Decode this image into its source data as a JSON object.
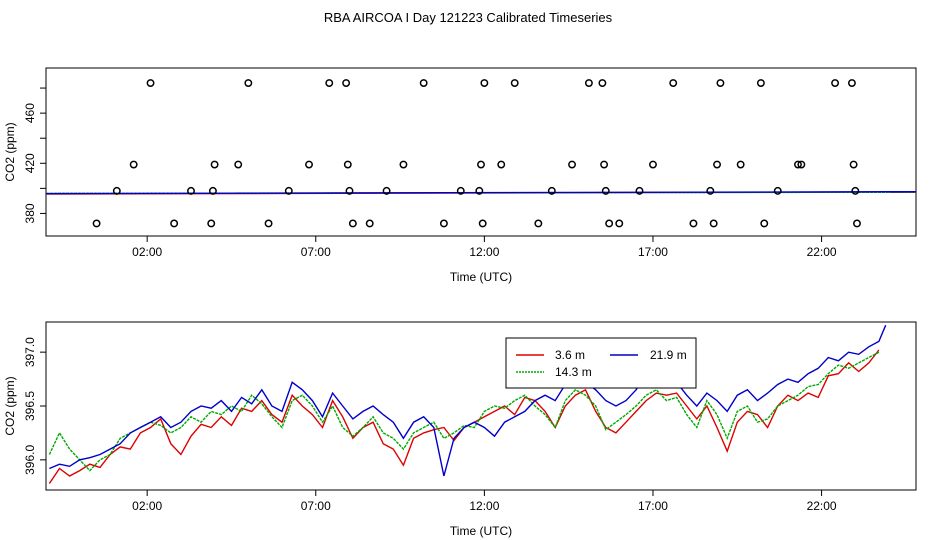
{
  "title": "RBA AIRCOA I  Day 121223  Calibrated Timeseries",
  "colors": {
    "s1": "#dd0000",
    "s2": "#00aa00",
    "s3": "#0000cc"
  },
  "chart_data": [
    {
      "type": "scatter",
      "xlabel": "Time (UTC)",
      "ylabel": "CO2 (ppm)",
      "x_ticks": [
        "02:00",
        "07:00",
        "12:00",
        "17:00",
        "22:00"
      ],
      "y_ticks": [
        "380",
        "420",
        "460"
      ],
      "xlim": [
        23.0,
        48.8
      ],
      "ylim": [
        362,
        496
      ],
      "grid": false,
      "legend": "none",
      "circle_points": [
        [
          24.5,
          372
        ],
        [
          25.1,
          398
        ],
        [
          25.6,
          419
        ],
        [
          26.1,
          484
        ],
        [
          26.8,
          372
        ],
        [
          27.3,
          398
        ],
        [
          27.9,
          372
        ],
        [
          27.95,
          398
        ],
        [
          28.0,
          419
        ],
        [
          28.7,
          419
        ],
        [
          29.0,
          484
        ],
        [
          29.6,
          372
        ],
        [
          30.2,
          398
        ],
        [
          30.8,
          419
        ],
        [
          31.4,
          484
        ],
        [
          31.9,
          484
        ],
        [
          31.95,
          419
        ],
        [
          32.0,
          398
        ],
        [
          32.1,
          372
        ],
        [
          32.6,
          372
        ],
        [
          33.1,
          398
        ],
        [
          33.6,
          419
        ],
        [
          34.2,
          484
        ],
        [
          34.8,
          372
        ],
        [
          35.3,
          398
        ],
        [
          35.85,
          398
        ],
        [
          35.9,
          419
        ],
        [
          35.95,
          372
        ],
        [
          36.0,
          484
        ],
        [
          36.5,
          419
        ],
        [
          36.9,
          484
        ],
        [
          37.6,
          372
        ],
        [
          38.0,
          398
        ],
        [
          38.6,
          419
        ],
        [
          39.1,
          484
        ],
        [
          39.5,
          484
        ],
        [
          39.55,
          419
        ],
        [
          39.6,
          398
        ],
        [
          39.7,
          372
        ],
        [
          40.0,
          372
        ],
        [
          40.6,
          398
        ],
        [
          41.0,
          419
        ],
        [
          41.6,
          484
        ],
        [
          42.2,
          372
        ],
        [
          42.7,
          398
        ],
        [
          42.8,
          372
        ],
        [
          42.9,
          419
        ],
        [
          43.0,
          484
        ],
        [
          43.6,
          419
        ],
        [
          44.2,
          484
        ],
        [
          44.3,
          372
        ],
        [
          44.7,
          398
        ],
        [
          45.3,
          419
        ],
        [
          45.4,
          419
        ],
        [
          46.4,
          484
        ],
        [
          46.9,
          484
        ],
        [
          46.95,
          419
        ],
        [
          47.0,
          398
        ],
        [
          47.05,
          372
        ]
      ],
      "series": [
        {
          "name": "",
          "color": "#dd0000",
          "x": [
            23.0,
            48.8
          ],
          "y": [
            395.5,
            397.2
          ]
        },
        {
          "name": "",
          "color": "#00aa00",
          "x": [
            23.0,
            48.8
          ],
          "y": [
            396.0,
            396.9
          ]
        },
        {
          "name": "",
          "color": "#0000cc",
          "x": [
            23.0,
            48.8
          ],
          "y": [
            395.8,
            397.3
          ]
        }
      ]
    },
    {
      "type": "line",
      "xlabel": "Time (UTC)",
      "ylabel": "CO2 (ppm)",
      "x_ticks": [
        "02:00",
        "07:00",
        "12:00",
        "17:00",
        "22:00"
      ],
      "y_ticks": [
        "396.0",
        "396.5",
        "397.0"
      ],
      "xlim": [
        23.0,
        48.8
      ],
      "ylim": [
        395.72,
        397.28
      ],
      "grid": false,
      "legend": "top-right",
      "series": [
        {
          "name": "3.6 m",
          "color": "#dd0000",
          "x": [
            23.1,
            23.4,
            23.7,
            24.0,
            24.3,
            24.6,
            24.9,
            25.2,
            25.5,
            25.8,
            26.1,
            26.4,
            26.7,
            27.0,
            27.3,
            27.6,
            27.9,
            28.2,
            28.5,
            28.8,
            29.1,
            29.4,
            29.7,
            30.0,
            30.3,
            30.6,
            30.9,
            31.2,
            31.5,
            31.8,
            32.1,
            32.4,
            32.7,
            33.0,
            33.3,
            33.6,
            33.9,
            34.2,
            34.5,
            34.8,
            35.1,
            35.4,
            35.7,
            36.0,
            36.3,
            36.6,
            36.9,
            37.2,
            37.5,
            37.8,
            38.1,
            38.4,
            38.7,
            39.0,
            39.3,
            39.6,
            39.9,
            40.2,
            40.5,
            40.8,
            41.1,
            41.4,
            41.7,
            42.0,
            42.3,
            42.6,
            42.9,
            43.2,
            43.5,
            43.8,
            44.1,
            44.4,
            44.7,
            45.0,
            45.3,
            45.6,
            45.9,
            46.2,
            46.5,
            46.8,
            47.1,
            47.4,
            47.7
          ],
          "y": [
            395.78,
            395.92,
            395.85,
            395.9,
            395.96,
            395.93,
            396.05,
            396.12,
            396.1,
            396.25,
            396.3,
            396.38,
            396.15,
            396.05,
            396.22,
            396.33,
            396.3,
            396.4,
            396.32,
            396.48,
            396.45,
            396.55,
            396.42,
            396.35,
            396.6,
            396.5,
            396.42,
            396.3,
            396.55,
            396.4,
            396.2,
            396.3,
            396.35,
            396.15,
            396.1,
            395.95,
            396.2,
            396.25,
            396.28,
            396.3,
            396.18,
            396.3,
            396.35,
            396.4,
            396.45,
            396.5,
            396.42,
            396.58,
            396.55,
            396.45,
            396.3,
            396.5,
            396.6,
            396.65,
            396.45,
            396.3,
            396.25,
            396.35,
            396.45,
            396.55,
            396.62,
            396.6,
            396.62,
            396.5,
            396.38,
            396.5,
            396.3,
            396.08,
            396.35,
            396.45,
            396.42,
            396.3,
            396.5,
            396.6,
            396.55,
            396.62,
            396.58,
            396.78,
            396.8,
            396.9,
            396.82,
            396.9,
            397.02
          ]
        },
        {
          "name": "14.3 m",
          "color": "#00aa00",
          "x": [
            23.1,
            23.4,
            23.7,
            24.0,
            24.3,
            24.6,
            24.9,
            25.2,
            25.5,
            25.8,
            26.1,
            26.4,
            26.7,
            27.0,
            27.3,
            27.6,
            27.9,
            28.2,
            28.5,
            28.8,
            29.1,
            29.4,
            29.7,
            30.0,
            30.3,
            30.6,
            30.9,
            31.2,
            31.5,
            31.8,
            32.1,
            32.4,
            32.7,
            33.0,
            33.3,
            33.6,
            33.9,
            34.2,
            34.5,
            34.8,
            35.1,
            35.4,
            35.7,
            36.0,
            36.3,
            36.6,
            36.9,
            37.2,
            37.5,
            37.8,
            38.1,
            38.4,
            38.7,
            39.0,
            39.3,
            39.6,
            39.9,
            40.2,
            40.5,
            40.8,
            41.1,
            41.4,
            41.7,
            42.0,
            42.3,
            42.6,
            42.9,
            43.2,
            43.5,
            43.8,
            44.1,
            44.4,
            44.7,
            45.0,
            45.3,
            45.6,
            45.9,
            46.2,
            46.5,
            46.8,
            47.1,
            47.4,
            47.7
          ],
          "y": [
            396.05,
            396.25,
            396.1,
            396.0,
            395.9,
            396.0,
            396.05,
            396.2,
            396.25,
            396.3,
            396.35,
            396.32,
            396.25,
            396.3,
            396.4,
            396.35,
            396.45,
            396.42,
            396.5,
            396.45,
            396.6,
            396.52,
            396.4,
            396.3,
            396.55,
            396.6,
            396.5,
            396.35,
            396.5,
            396.3,
            396.22,
            396.3,
            396.4,
            396.25,
            396.2,
            396.1,
            396.25,
            396.3,
            396.35,
            396.2,
            396.25,
            396.32,
            396.3,
            396.45,
            396.5,
            396.48,
            396.55,
            396.6,
            396.5,
            396.42,
            396.3,
            396.55,
            396.65,
            396.6,
            396.5,
            396.28,
            396.35,
            396.42,
            396.5,
            396.6,
            396.65,
            396.55,
            396.58,
            396.42,
            396.3,
            396.55,
            396.42,
            396.2,
            396.45,
            396.5,
            396.35,
            396.38,
            396.5,
            396.55,
            396.6,
            396.68,
            396.7,
            396.8,
            396.88,
            396.85,
            396.9,
            396.95,
            397.0
          ]
        },
        {
          "name": "21.9 m",
          "color": "#0000cc",
          "x": [
            23.1,
            23.4,
            23.7,
            24.0,
            24.3,
            24.6,
            24.9,
            25.2,
            25.5,
            25.8,
            26.1,
            26.4,
            26.7,
            27.0,
            27.3,
            27.6,
            27.9,
            28.2,
            28.5,
            28.8,
            29.1,
            29.4,
            29.7,
            30.0,
            30.3,
            30.6,
            30.9,
            31.2,
            31.5,
            31.8,
            32.1,
            32.4,
            32.7,
            33.0,
            33.3,
            33.6,
            33.9,
            34.2,
            34.5,
            34.8,
            35.1,
            35.4,
            35.7,
            36.0,
            36.3,
            36.6,
            36.9,
            37.2,
            37.5,
            37.8,
            38.1,
            38.4,
            38.7,
            39.0,
            39.3,
            39.6,
            39.9,
            40.2,
            40.5,
            40.8,
            41.1,
            41.4,
            41.7,
            42.0,
            42.3,
            42.6,
            42.9,
            43.2,
            43.5,
            43.8,
            44.1,
            44.4,
            44.7,
            45.0,
            45.3,
            45.6,
            45.9,
            46.2,
            46.5,
            46.8,
            47.1,
            47.4,
            47.7,
            47.9
          ],
          "y": [
            395.92,
            395.96,
            395.94,
            396.0,
            396.02,
            396.05,
            396.1,
            396.15,
            396.25,
            396.3,
            396.35,
            396.4,
            396.3,
            396.35,
            396.45,
            396.5,
            396.48,
            396.55,
            396.45,
            396.58,
            396.52,
            396.65,
            396.5,
            396.45,
            396.72,
            396.65,
            396.55,
            396.4,
            396.62,
            396.5,
            396.38,
            396.45,
            396.5,
            396.42,
            396.35,
            396.2,
            396.35,
            396.4,
            396.3,
            395.85,
            396.2,
            396.3,
            396.35,
            396.3,
            396.22,
            396.35,
            396.4,
            396.45,
            396.55,
            396.6,
            396.55,
            396.7,
            396.75,
            396.72,
            396.65,
            396.55,
            396.5,
            396.55,
            396.65,
            396.8,
            396.85,
            396.75,
            396.72,
            396.6,
            396.5,
            396.62,
            396.55,
            396.45,
            396.6,
            396.65,
            396.55,
            396.62,
            396.7,
            396.75,
            396.72,
            396.8,
            396.85,
            396.95,
            396.92,
            397.0,
            396.98,
            397.05,
            397.1,
            397.25
          ]
        }
      ]
    }
  ]
}
